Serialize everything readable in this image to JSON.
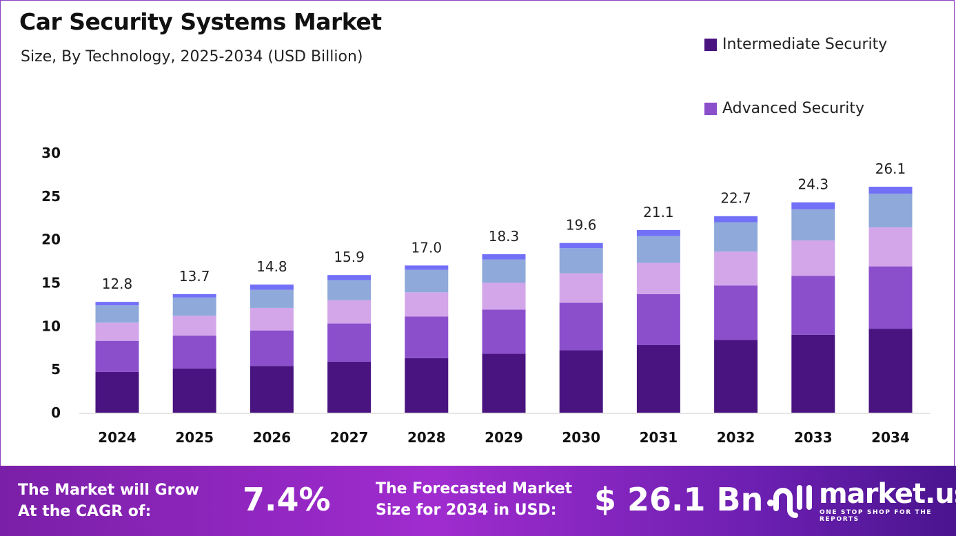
{
  "chart_data": {
    "type": "bar",
    "stacked": true,
    "title": "Car Security Systems Market",
    "subtitle": "Size, By Technology, 2025-2034 (USD Billion)",
    "categories": [
      "2024",
      "2025",
      "2026",
      "2027",
      "2028",
      "2029",
      "2030",
      "2031",
      "2032",
      "2033",
      "2034"
    ],
    "series": [
      {
        "name": "Intermediate Security",
        "color": "#4a1480",
        "values": [
          4.7,
          5.1,
          5.4,
          5.9,
          6.3,
          6.8,
          7.2,
          7.8,
          8.4,
          9.0,
          9.7
        ]
      },
      {
        "name": "Advanced Security",
        "color": "#8b4fcc",
        "values": [
          3.6,
          3.8,
          4.1,
          4.4,
          4.8,
          5.1,
          5.5,
          5.9,
          6.3,
          6.8,
          7.2
        ]
      },
      {
        "color": "#d3a6ea",
        "values": [
          2.1,
          2.3,
          2.6,
          2.7,
          2.8,
          3.1,
          3.4,
          3.6,
          3.9,
          4.1,
          4.5
        ]
      },
      {
        "color": "#8ea9da",
        "values": [
          2.0,
          2.1,
          2.1,
          2.3,
          2.6,
          2.7,
          2.9,
          3.1,
          3.4,
          3.6,
          3.9
        ]
      },
      {
        "color": "#7370f8",
        "values": [
          0.4,
          0.4,
          0.6,
          0.6,
          0.5,
          0.6,
          0.6,
          0.7,
          0.7,
          0.8,
          0.8
        ]
      }
    ],
    "totals": [
      "12.8",
      "13.7",
      "14.8",
      "15.9",
      "17.0",
      "18.3",
      "19.6",
      "21.1",
      "22.7",
      "24.3",
      "26.1"
    ],
    "yticks": [
      "0",
      "5",
      "10",
      "15",
      "20",
      "25",
      "30"
    ],
    "ylim": [
      0,
      30
    ],
    "xlabel": "",
    "ylabel": "",
    "grid": false,
    "legend_position": "top-right"
  },
  "footer": {
    "cagr_label": [
      "The Market will Grow",
      "At the CAGR of:"
    ],
    "cagr_value": "7.4%",
    "forecast_label": [
      "The Forecasted Market",
      "Size for 2034 in USD:"
    ],
    "forecast_value": "$ 26.1 Bn",
    "brand": "market.us",
    "tagline": "ONE STOP SHOP FOR THE REPORTS"
  }
}
